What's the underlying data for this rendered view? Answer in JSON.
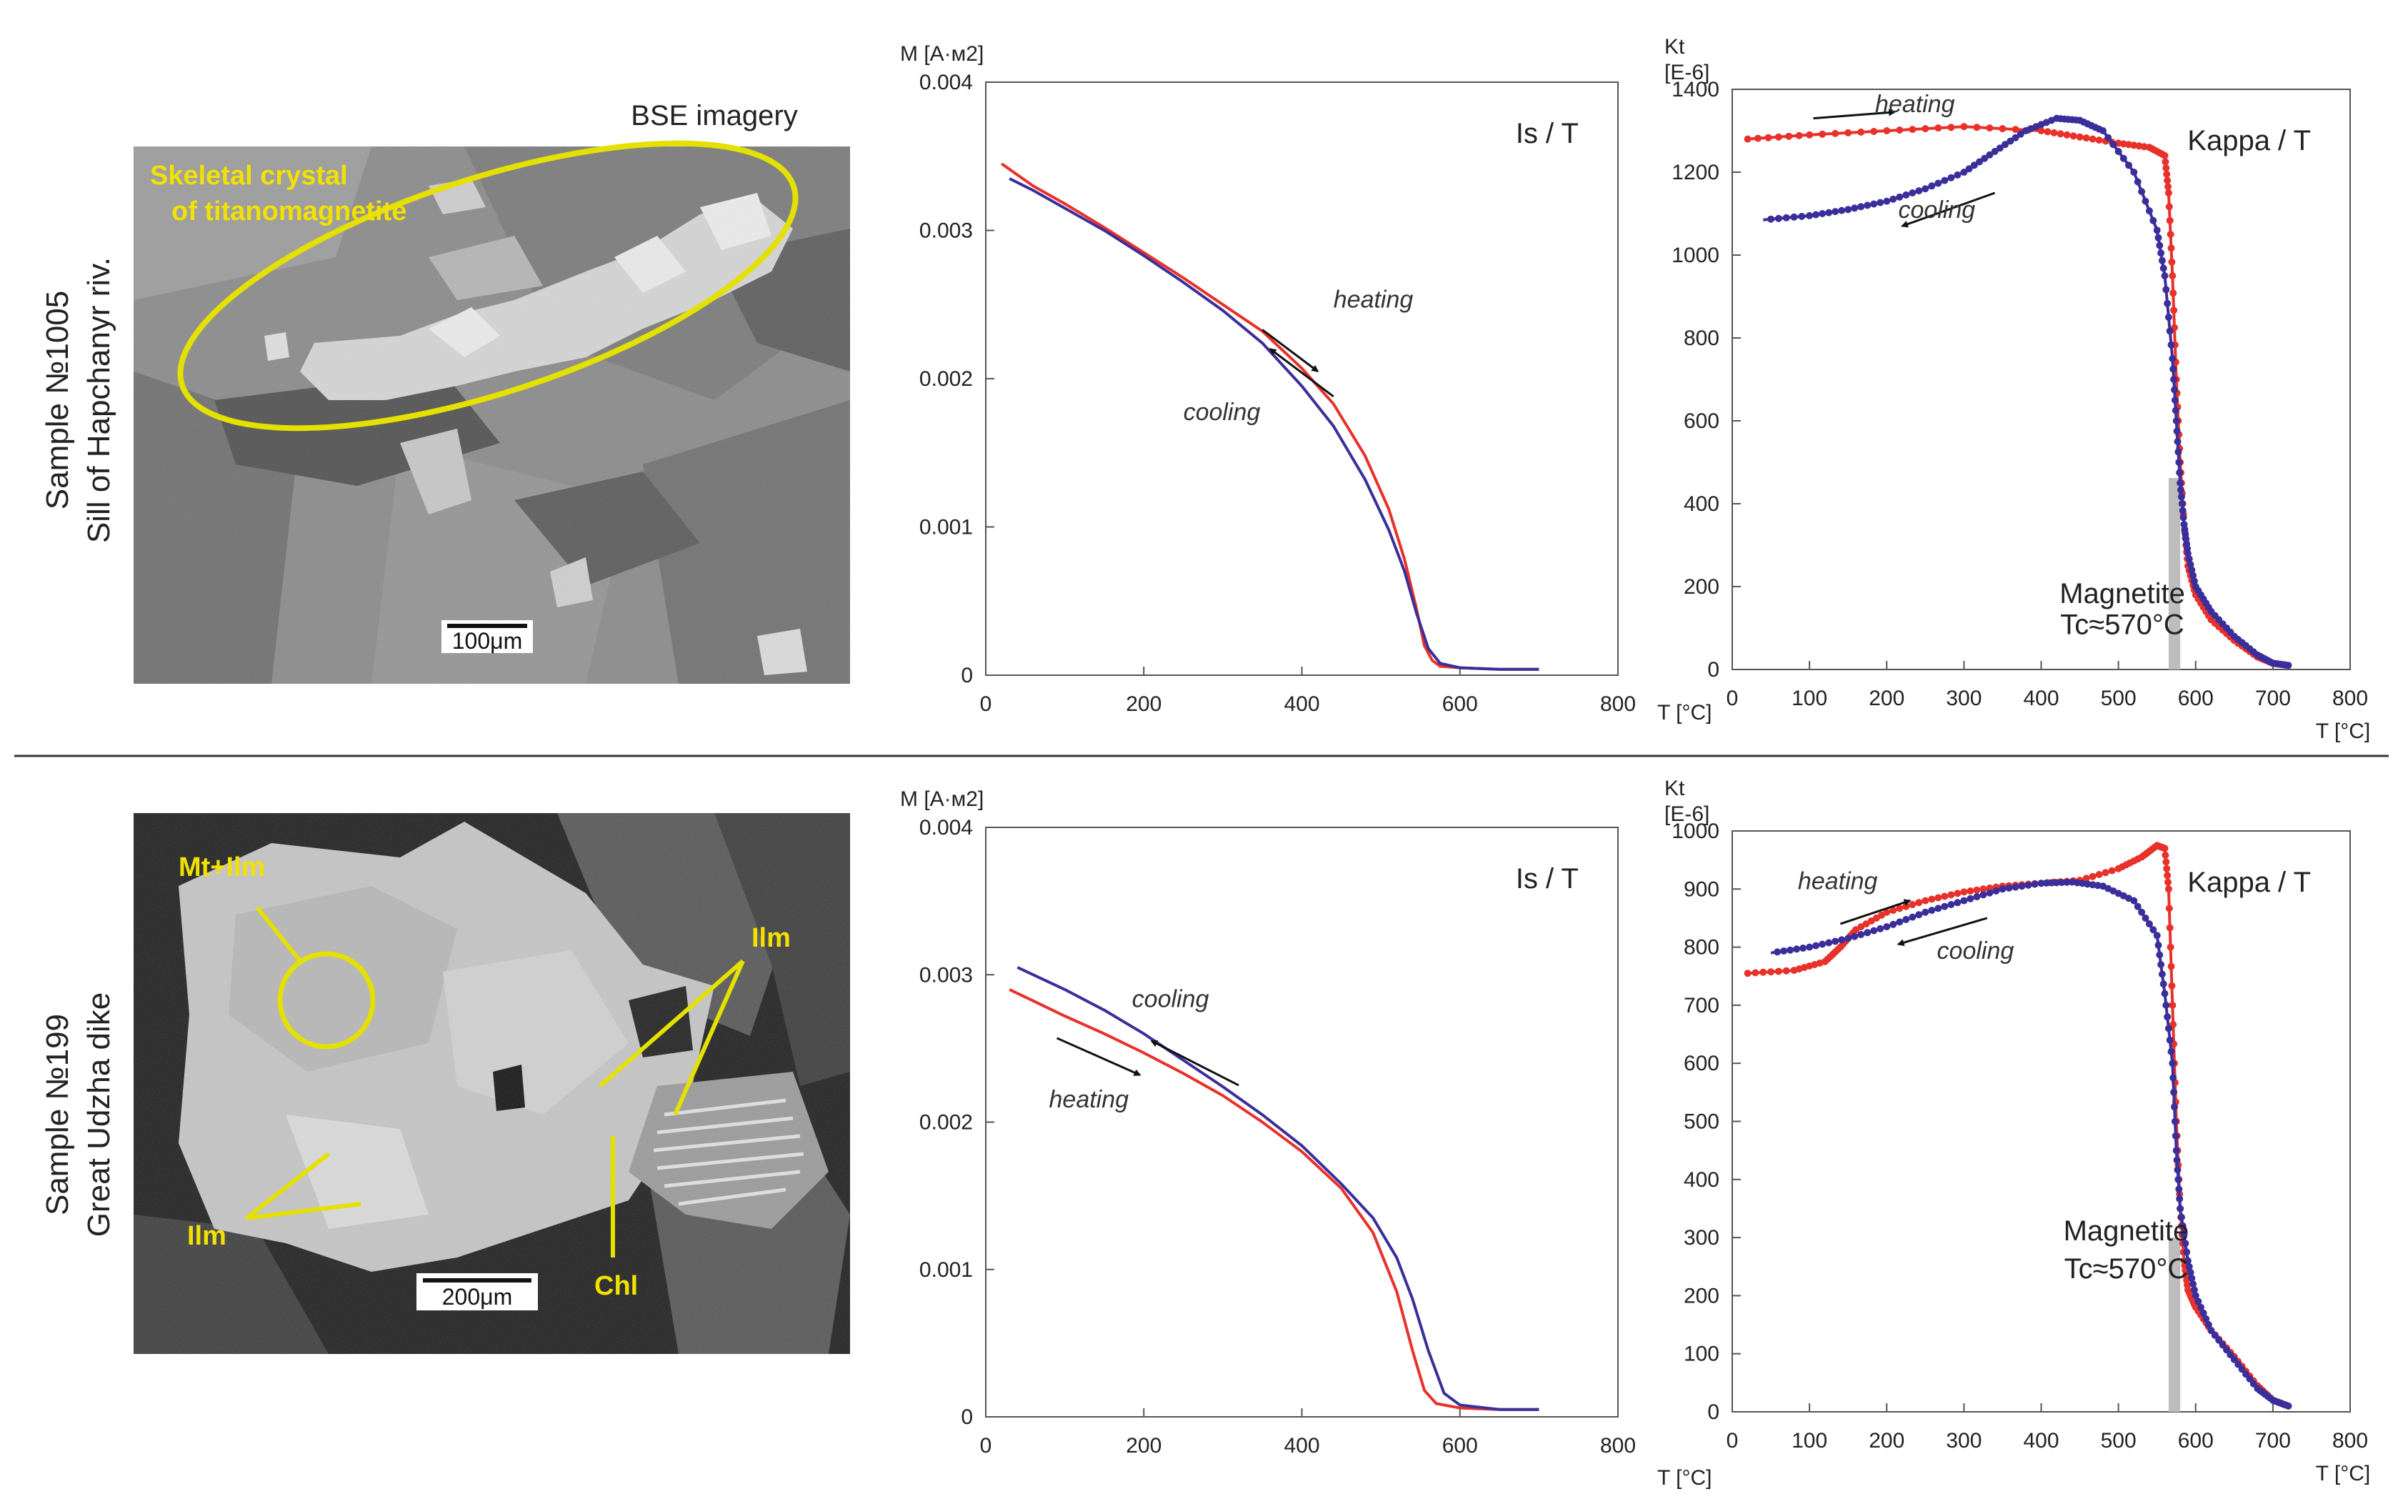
{
  "rows": [
    {
      "sample_line1": "Sample №1005",
      "sample_line2": "Sill of Hapchanyr riv.",
      "bse": {
        "header": "BSE imagery",
        "label_a": "Skeletal crystal",
        "label_b": "of titanomagnetite",
        "scale": "100μm"
      }
    },
    {
      "sample_line1": "Sample №199",
      "sample_line2": "Great Udzha dike",
      "bse": {
        "mtilm": "Mt+Ilm",
        "ilm_right": "Ilm",
        "ilm_left": "Ilm",
        "chl": "Chl",
        "scale": "200μm"
      }
    }
  ],
  "chart_data": [
    {
      "type": "line",
      "title": "Is / T",
      "ylabel": "M [A·м2]",
      "xlabel": "T [°C]",
      "xlim": [
        0,
        800
      ],
      "ylim": [
        0,
        0.004
      ],
      "xticks": [
        "0",
        "200",
        "400",
        "600",
        "800"
      ],
      "yticks": [
        "0",
        "0.001",
        "0.002",
        "0.003",
        "0.004"
      ],
      "series": [
        {
          "name": "heating",
          "color": "#e8312a",
          "x": [
            20,
            60,
            100,
            150,
            200,
            250,
            300,
            350,
            400,
            440,
            480,
            510,
            530,
            545,
            555,
            565,
            575,
            600,
            650,
            700
          ],
          "y": [
            0.00345,
            0.0033,
            0.00318,
            0.00302,
            0.00285,
            0.00268,
            0.0025,
            0.00232,
            0.00207,
            0.00183,
            0.00148,
            0.00112,
            0.00078,
            0.00045,
            0.0002,
            0.0001,
            6e-05,
            5e-05,
            4e-05,
            4e-05
          ]
        },
        {
          "name": "cooling",
          "color": "#3a2f9a",
          "x": [
            700,
            650,
            600,
            575,
            560,
            545,
            530,
            510,
            480,
            440,
            400,
            350,
            300,
            250,
            200,
            150,
            100,
            60,
            30
          ],
          "y": [
            4e-05,
            4e-05,
            5e-05,
            8e-05,
            0.00018,
            0.00042,
            0.0007,
            0.00098,
            0.00132,
            0.00168,
            0.00195,
            0.00224,
            0.00246,
            0.00265,
            0.00283,
            0.003,
            0.00315,
            0.00327,
            0.00335
          ]
        }
      ],
      "annotations": [
        "heating",
        "cooling"
      ]
    },
    {
      "type": "line",
      "title": "Kappa / T",
      "ylabel_line1": "Kt",
      "ylabel_line2": "[E-6]",
      "xlabel": "T [°C]",
      "xlim": [
        0,
        800
      ],
      "ylim": [
        0,
        1400
      ],
      "xticks": [
        "0",
        "100",
        "200",
        "300",
        "400",
        "500",
        "600",
        "700",
        "800"
      ],
      "yticks": [
        "0",
        "200",
        "400",
        "600",
        "800",
        "1000",
        "1200",
        "1400"
      ],
      "series": [
        {
          "name": "heating",
          "color": "#e8312a",
          "x": [
            20,
            100,
            200,
            300,
            400,
            450,
            500,
            540,
            560,
            565,
            570,
            575,
            580,
            585,
            590,
            600,
            620,
            650,
            680,
            700,
            720
          ],
          "y": [
            1280,
            1290,
            1300,
            1310,
            1300,
            1285,
            1270,
            1260,
            1240,
            1150,
            950,
            700,
            500,
            350,
            250,
            180,
            120,
            70,
            30,
            15,
            10
          ]
        },
        {
          "name": "cooling",
          "color": "#3a2f9a",
          "x": [
            720,
            700,
            680,
            650,
            620,
            600,
            590,
            585,
            580,
            575,
            570,
            560,
            550,
            520,
            480,
            450,
            420,
            380,
            340,
            300,
            250,
            200,
            150,
            100,
            40
          ],
          "y": [
            10,
            15,
            35,
            80,
            140,
            200,
            280,
            350,
            450,
            600,
            750,
            950,
            1060,
            1200,
            1300,
            1325,
            1330,
            1300,
            1250,
            1200,
            1160,
            1130,
            1110,
            1095,
            1085
          ]
        }
      ],
      "annotations": [
        "heating",
        "cooling",
        "Magnetite",
        "Tc≈570°C"
      ]
    },
    {
      "type": "line",
      "title": "Is / T",
      "ylabel": "M [A·м2]",
      "xlabel": "T [°C]",
      "xlim": [
        0,
        800
      ],
      "ylim": [
        0,
        0.004
      ],
      "xticks": [
        "0",
        "200",
        "400",
        "600",
        "800"
      ],
      "yticks": [
        "0",
        "0.001",
        "0.002",
        "0.003",
        "0.004"
      ],
      "series": [
        {
          "name": "heating",
          "color": "#e8312a",
          "x": [
            30,
            100,
            150,
            200,
            250,
            300,
            350,
            400,
            450,
            490,
            520,
            540,
            555,
            570,
            600,
            650,
            700
          ],
          "y": [
            0.0029,
            0.00272,
            0.0026,
            0.00247,
            0.00233,
            0.00218,
            0.002,
            0.0018,
            0.00155,
            0.00125,
            0.00085,
            0.00045,
            0.00018,
            9e-05,
            6e-05,
            5e-05,
            5e-05
          ]
        },
        {
          "name": "cooling",
          "color": "#3a2f9a",
          "x": [
            700,
            650,
            600,
            580,
            560,
            540,
            520,
            490,
            450,
            400,
            350,
            300,
            250,
            200,
            150,
            100,
            40
          ],
          "y": [
            5e-05,
            5e-05,
            8e-05,
            0.00016,
            0.00045,
            0.0008,
            0.00108,
            0.00135,
            0.00158,
            0.00184,
            0.00205,
            0.00224,
            0.00242,
            0.0026,
            0.00276,
            0.0029,
            0.00305
          ]
        }
      ],
      "annotations": [
        "cooling",
        "heating"
      ]
    },
    {
      "type": "line",
      "title": "Kappa / T",
      "ylabel_line1": "Kt",
      "ylabel_line2": "[E-6]",
      "xlabel": "T [°C]",
      "xlim": [
        0,
        800
      ],
      "ylim": [
        0,
        1000
      ],
      "xticks": [
        "0",
        "100",
        "200",
        "300",
        "400",
        "500",
        "600",
        "700",
        "800"
      ],
      "yticks": [
        "0",
        "100",
        "200",
        "300",
        "400",
        "500",
        "600",
        "700",
        "800",
        "900",
        "1000"
      ],
      "series": [
        {
          "name": "heating",
          "color": "#e8312a",
          "x": [
            20,
            80,
            120,
            140,
            160,
            200,
            250,
            300,
            350,
            400,
            450,
            500,
            530,
            550,
            560,
            565,
            570,
            575,
            580,
            585,
            590,
            600,
            620,
            650,
            680,
            700,
            720
          ],
          "y": [
            755,
            760,
            775,
            800,
            830,
            860,
            880,
            895,
            905,
            910,
            915,
            935,
            955,
            975,
            970,
            900,
            700,
            500,
            350,
            260,
            210,
            180,
            140,
            95,
            45,
            20,
            10
          ]
        },
        {
          "name": "cooling",
          "color": "#3a2f9a",
          "x": [
            720,
            700,
            680,
            650,
            620,
            600,
            590,
            580,
            575,
            570,
            560,
            550,
            520,
            480,
            440,
            400,
            350,
            300,
            250,
            200,
            150,
            100,
            50
          ],
          "y": [
            10,
            20,
            40,
            90,
            140,
            200,
            260,
            350,
            450,
            600,
            720,
            820,
            880,
            905,
            912,
            910,
            900,
            880,
            860,
            835,
            815,
            800,
            790
          ]
        }
      ],
      "annotations": [
        "heating",
        "cooling",
        "Magnetite",
        "Tc≈570°C"
      ]
    }
  ]
}
